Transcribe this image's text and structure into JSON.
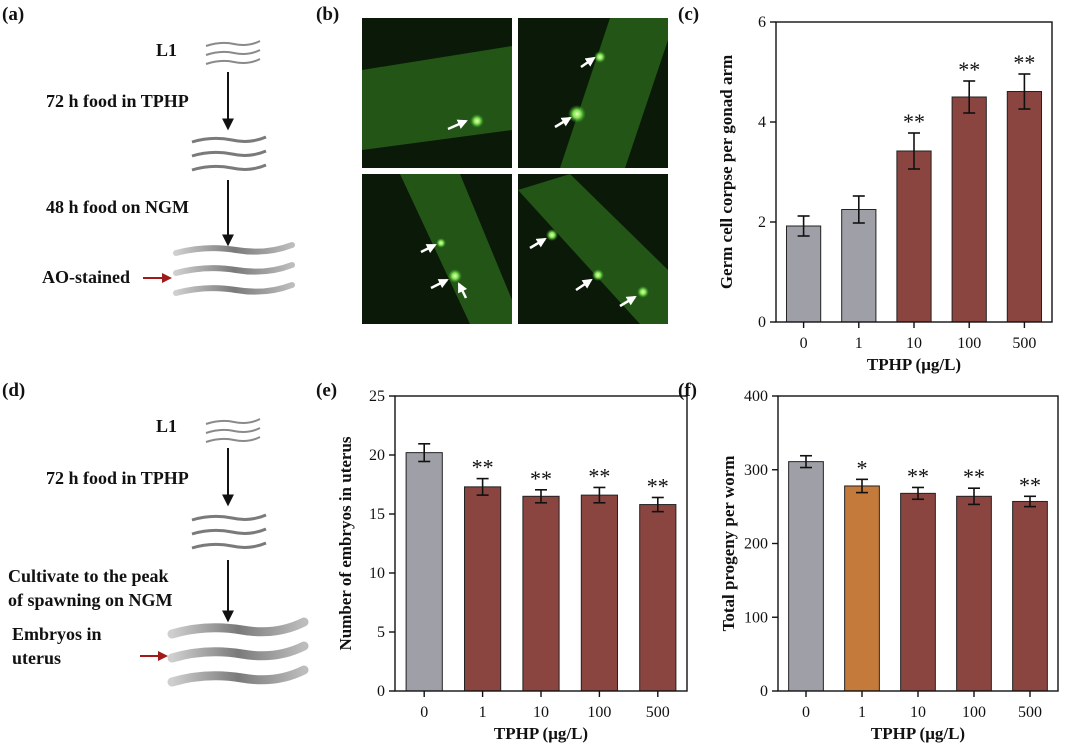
{
  "panels": {
    "a": "(a)",
    "b": "(b)",
    "c": "(c)",
    "d": "(d)",
    "e": "(e)",
    "f": "(f)"
  },
  "flow_a": {
    "start": "L1",
    "step1": "72 h food in TPHP",
    "step2": "48 h food on NGM",
    "end": "AO-stained"
  },
  "flow_d": {
    "start": "L1",
    "step1": "72 h food in TPHP",
    "step2_line1": "Cultivate to the peak",
    "step2_line2": "of spawning on NGM",
    "end_line1": "Embryos in",
    "end_line2": "uterus"
  },
  "colors": {
    "gray_bar": "#9fa0a7",
    "red_bar": "#8b4540",
    "orange_bar": "#c47a3a",
    "fluorescence": "#2f9a2a",
    "arrow_red": "#a01a1a"
  },
  "chart_data": [
    {
      "panel": "c",
      "type": "bar",
      "categories": [
        "0",
        "1",
        "10",
        "100",
        "500"
      ],
      "values": [
        1.92,
        2.25,
        3.42,
        4.5,
        4.61
      ],
      "errors": [
        0.2,
        0.27,
        0.36,
        0.32,
        0.35
      ],
      "significance": [
        "",
        "",
        "**",
        "**",
        "**"
      ],
      "bar_colors": [
        "#9fa0a7",
        "#9fa0a7",
        "#8b4540",
        "#8b4540",
        "#8b4540"
      ],
      "xlabel": "TPHP (μg/L)",
      "ylabel": "Germ cell corpse per gonad arm",
      "ylim": [
        0,
        6
      ],
      "yticks": [
        0,
        2,
        4,
        6
      ],
      "grid": false
    },
    {
      "panel": "e",
      "type": "bar",
      "categories": [
        "0",
        "1",
        "10",
        "100",
        "500"
      ],
      "values": [
        20.2,
        17.3,
        16.5,
        16.6,
        15.8
      ],
      "errors": [
        0.75,
        0.7,
        0.55,
        0.65,
        0.6
      ],
      "significance": [
        "",
        "**",
        "**",
        "**",
        "**"
      ],
      "bar_colors": [
        "#9fa0a7",
        "#8b4540",
        "#8b4540",
        "#8b4540",
        "#8b4540"
      ],
      "xlabel": "TPHP (μg/L)",
      "ylabel": "Number of embryos in uterus",
      "ylim": [
        0,
        25
      ],
      "yticks": [
        0,
        5,
        10,
        15,
        20,
        25
      ],
      "grid": false
    },
    {
      "panel": "f",
      "type": "bar",
      "categories": [
        "0",
        "1",
        "10",
        "100",
        "500"
      ],
      "values": [
        311,
        278,
        268,
        264,
        257
      ],
      "errors": [
        8,
        9,
        8,
        11,
        7
      ],
      "significance": [
        "",
        "*",
        "**",
        "**",
        "**"
      ],
      "bar_colors": [
        "#9fa0a7",
        "#c47a3a",
        "#8b4540",
        "#8b4540",
        "#8b4540"
      ],
      "xlabel": "TPHP (μg/L)",
      "ylabel": "Total progeny per worm",
      "ylim": [
        0,
        400
      ],
      "yticks": [
        0,
        100,
        200,
        300,
        400
      ],
      "grid": false
    }
  ]
}
